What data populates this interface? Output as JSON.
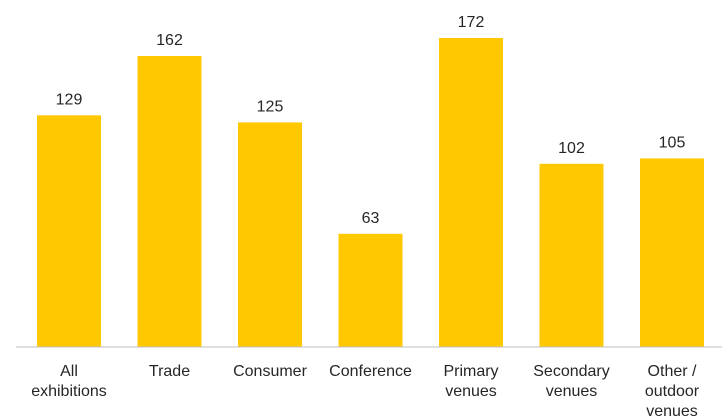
{
  "chart_data": {
    "type": "bar",
    "title": "",
    "xlabel": "",
    "ylabel": "",
    "categories": [
      [
        "All",
        "exhibitions"
      ],
      [
        "Trade"
      ],
      [
        "Consumer"
      ],
      [
        "Conference"
      ],
      [
        "Primary",
        "venues"
      ],
      [
        "Secondary",
        "venues"
      ],
      [
        "Other /",
        "outdoor",
        "venues"
      ]
    ],
    "values": [
      129,
      162,
      125,
      63,
      172,
      102,
      105
    ],
    "ylim": [
      0,
      172
    ],
    "grid": false,
    "legend": "none",
    "bar_color": "#FFC800",
    "axis_color": "#BFBFBF",
    "text_color": "#262626"
  }
}
